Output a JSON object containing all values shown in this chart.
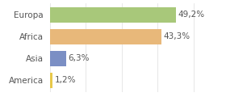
{
  "categories": [
    "Europa",
    "Africa",
    "Asia",
    "America"
  ],
  "values": [
    49.2,
    43.3,
    6.3,
    1.2
  ],
  "labels": [
    "49,2%",
    "43,3%",
    "6,3%",
    "1,2%"
  ],
  "bar_colors": [
    "#a8c87a",
    "#e8b87a",
    "#7b8fc4",
    "#e8c84a"
  ],
  "background_color": "#ffffff",
  "plot_bg_color": "#ffffff",
  "xlim": [
    0,
    58
  ],
  "bar_height": 0.72,
  "label_fontsize": 7.5,
  "category_fontsize": 7.5,
  "grid_color": "#dddddd"
}
